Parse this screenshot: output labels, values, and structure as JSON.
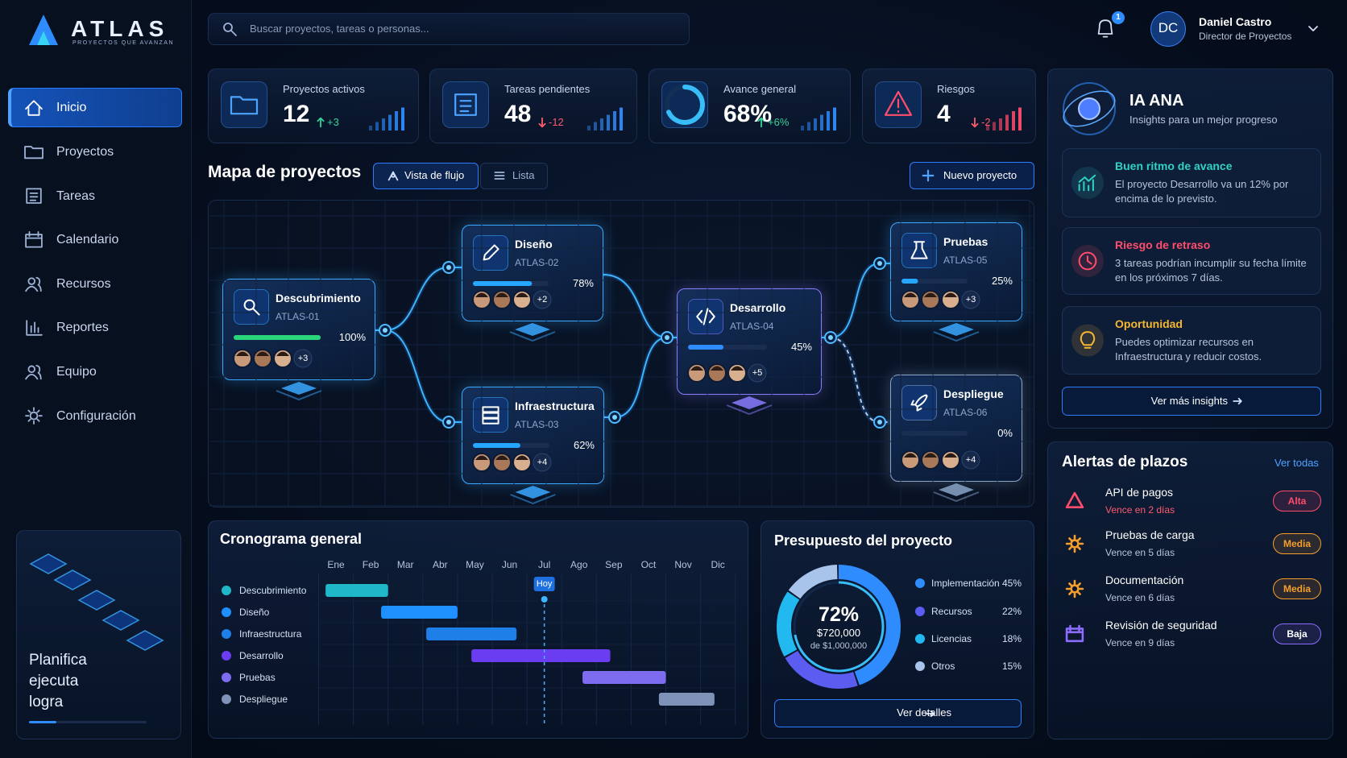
{
  "brand": {
    "name": "ATLAS",
    "tagline": "PROYECTOS QUE AVANZAN"
  },
  "search_placeholder": "Buscar proyectos, tareas o personas...",
  "notifications": 1,
  "user": {
    "initials": "DC",
    "name": "Daniel Castro",
    "role": "Director de Proyectos"
  },
  "nav": [
    "Inicio",
    "Proyectos",
    "Tareas",
    "Calendario",
    "Recursos",
    "Reportes",
    "Equipo",
    "Configuración"
  ],
  "promo": {
    "lines": [
      "Planifica",
      "ejecuta",
      "logra"
    ]
  },
  "kpis": [
    {
      "label": "Proyectos activos",
      "value": "12",
      "delta": "+3",
      "trend": "up"
    },
    {
      "label": "Tareas pendientes",
      "value": "48",
      "delta": "-12",
      "trend": "down"
    },
    {
      "label": "Avance general",
      "value": 68,
      "value_label": "68%",
      "delta": "+6%",
      "trend": "up"
    },
    {
      "label": "Riesgos",
      "value": "4",
      "delta": "-2",
      "trend": "down"
    }
  ],
  "map": {
    "title": "Mapa de proyectos",
    "views": [
      "Vista de flujo",
      "Lista"
    ],
    "new_button": "Nuevo proyecto",
    "nodes": [
      {
        "name": "Descubrimiento",
        "code": "ATLAS-01",
        "progress": 100,
        "progress_label": "100%",
        "extra": "+3",
        "color": "#3aa8ff"
      },
      {
        "name": "Diseño",
        "code": "ATLAS-02",
        "progress": 78,
        "progress_label": "78%",
        "extra": "+2",
        "color": "#3aa8ff"
      },
      {
        "name": "Infraestructura",
        "code": "ATLAS-03",
        "progress": 62,
        "progress_label": "62%",
        "extra": "+4",
        "color": "#3aa8ff"
      },
      {
        "name": "Desarrollo",
        "code": "ATLAS-04",
        "progress": 45,
        "progress_label": "45%",
        "extra": "+5",
        "color": "#8b7bff"
      },
      {
        "name": "Pruebas",
        "code": "ATLAS-05",
        "progress": 25,
        "progress_label": "25%",
        "extra": "+3",
        "color": "#3aa8ff"
      },
      {
        "name": "Despliegue",
        "code": "ATLAS-06",
        "progress": 0,
        "progress_label": "0%",
        "extra": "+4",
        "color": "#8aa4c8"
      }
    ]
  },
  "timeline": {
    "title": "Cronograma general",
    "months": [
      "Ene",
      "Feb",
      "Mar",
      "Abr",
      "May",
      "Jun",
      "Jul",
      "Ago",
      "Sep",
      "Oct",
      "Nov",
      "Dic"
    ],
    "today": "Hoy",
    "today_position": 6.5,
    "rows": [
      {
        "name": "Descubrimiento",
        "start": 0.2,
        "end": 2.0,
        "color": "#1fb8c9"
      },
      {
        "name": "Diseño",
        "start": 1.8,
        "end": 4.0,
        "color": "#1e90ff"
      },
      {
        "name": "Infraestructura",
        "start": 3.1,
        "end": 5.7,
        "color": "#1f7fe8"
      },
      {
        "name": "Desarrollo",
        "start": 4.4,
        "end": 8.4,
        "color": "#6a3df0"
      },
      {
        "name": "Pruebas",
        "start": 7.6,
        "end": 10.0,
        "color": "#7d6cf0"
      },
      {
        "name": "Despliegue",
        "start": 9.8,
        "end": 11.4,
        "color": "#7f93b8"
      }
    ]
  },
  "budget": {
    "title": "Presupuesto del proyecto",
    "used": 72,
    "used_label": "72%",
    "amount": "$720,000",
    "total": "de $1,000,000",
    "button": "Ver detalles",
    "items": [
      {
        "name": "Implementación",
        "value": 45,
        "label": "45%",
        "color": "#2f8cff"
      },
      {
        "name": "Recursos",
        "value": 22,
        "label": "22%",
        "color": "#5b5cf0"
      },
      {
        "name": "Licencias",
        "value": 18,
        "label": "18%",
        "color": "#22b8f0"
      },
      {
        "name": "Otros",
        "value": 15,
        "label": "15%",
        "color": "#a9c4ea"
      }
    ]
  },
  "insights": {
    "title": "IA ANA",
    "subtitle": "Insights para un mejor progreso",
    "button": "Ver más insights",
    "items": [
      {
        "title": "Buen ritmo de avance",
        "text": "El proyecto Desarrollo va un 12% por encima de lo previsto.",
        "color": "#2fd3c4"
      },
      {
        "title": "Riesgo de retraso",
        "text": "3 tareas podrían incumplir su fecha límite en los próximos 7 días.",
        "color": "#ff4d6d"
      },
      {
        "title": "Oportunidad",
        "text": "Puedes optimizar recursos en Infraestructura y reducir costos.",
        "color": "#f5b731"
      }
    ]
  },
  "alerts": {
    "title": "Alertas de plazos",
    "link": "Ver todas",
    "items": [
      {
        "name": "API de pagos",
        "due": "Vence en 2 días",
        "priority": "Alta",
        "color": "#ff4d6d"
      },
      {
        "name": "Pruebas de carga",
        "due": "Vence en 5 días",
        "priority": "Media",
        "color": "#f59e2b"
      },
      {
        "name": "Documentación",
        "due": "Vence en 6 días",
        "priority": "Media",
        "color": "#f59e2b"
      },
      {
        "name": "Revisión de seguridad",
        "due": "Vence en 9 días",
        "priority": "Baja",
        "color": "#8b6cff"
      }
    ]
  }
}
